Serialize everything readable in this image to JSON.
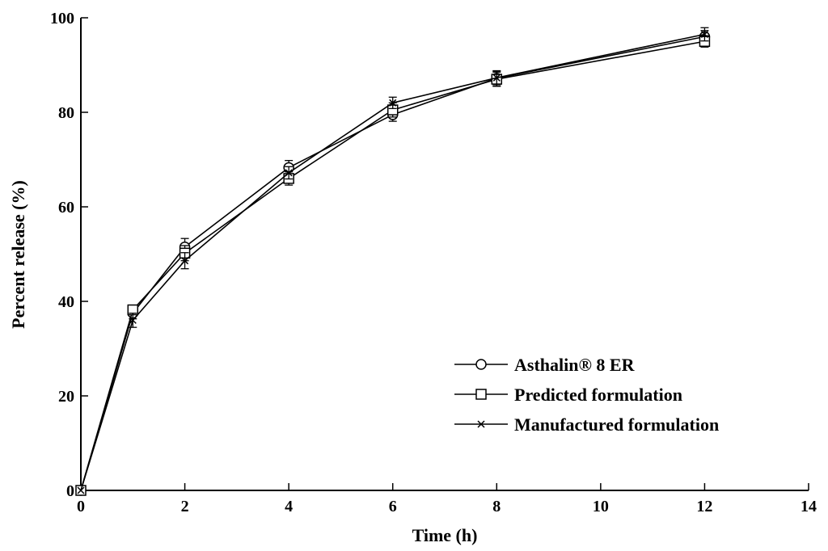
{
  "chart_data": {
    "type": "line",
    "title": "",
    "xlabel": "Time (h)",
    "ylabel": "Percent release (%)",
    "xlim": [
      0,
      14
    ],
    "ylim": [
      0,
      100
    ],
    "xticks": [
      0,
      2,
      4,
      6,
      8,
      10,
      12,
      14
    ],
    "yticks": [
      0,
      20,
      40,
      60,
      80,
      100
    ],
    "grid": false,
    "legend_position": "bottom-right",
    "x": [
      0,
      1,
      2,
      4,
      6,
      8,
      12
    ],
    "series": [
      {
        "name": "Asthalin® 8 ER",
        "marker": "circle",
        "values": [
          0,
          37.5,
          51.5,
          68.3,
          79.5,
          87.2,
          96.0
        ],
        "errors": [
          0,
          1.2,
          1.8,
          1.5,
          1.4,
          1.6,
          1.3
        ]
      },
      {
        "name": "Predicted formulation",
        "marker": "square",
        "values": [
          0,
          38.2,
          50.2,
          66.0,
          80.5,
          87.0,
          95.0
        ],
        "errors": [
          0,
          1.0,
          1.6,
          1.4,
          1.5,
          1.5,
          1.2
        ]
      },
      {
        "name": "Manufactured formulation",
        "marker": "x",
        "values": [
          0,
          36.0,
          48.6,
          67.2,
          82.0,
          87.3,
          96.5
        ],
        "errors": [
          0,
          1.5,
          1.7,
          1.3,
          1.2,
          1.4,
          1.4
        ]
      }
    ]
  }
}
